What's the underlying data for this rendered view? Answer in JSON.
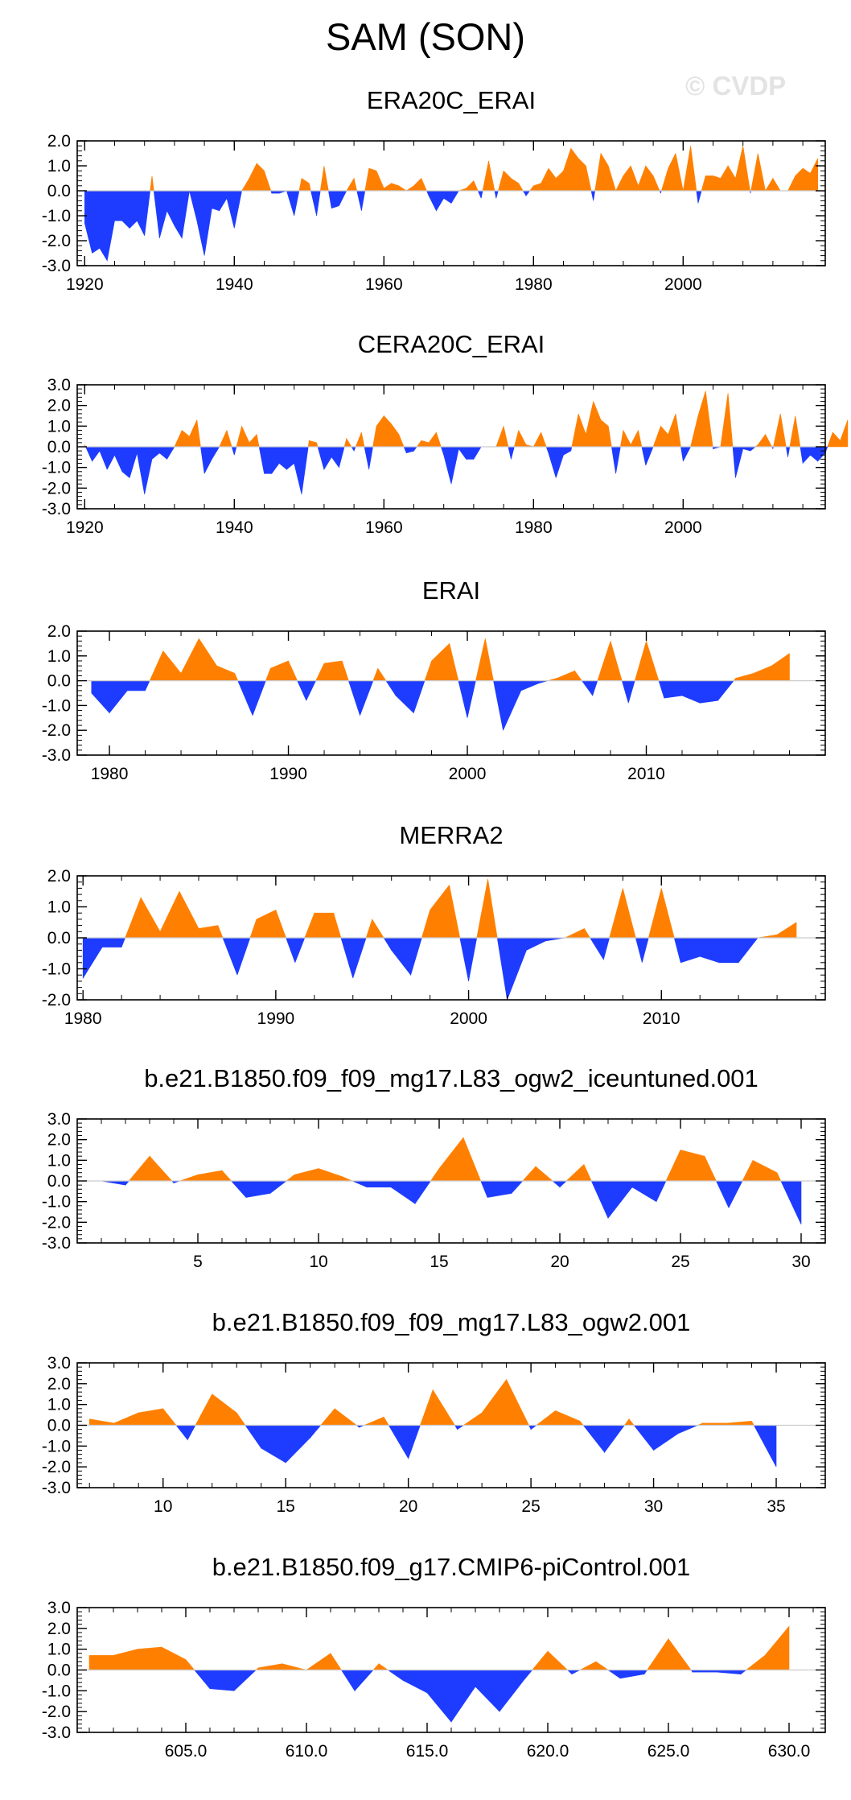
{
  "main_title": "SAM (SON)",
  "watermark": "© CVDP",
  "colors": {
    "positive": "#ff8000",
    "negative": "#1e3cff",
    "axis": "#000000"
  },
  "chart_data": [
    {
      "type": "area",
      "title": "ERA20C_ERAI",
      "xlim": [
        1919,
        2019
      ],
      "ylim": [
        -3,
        2
      ],
      "xticks": [
        1920,
        1940,
        1960,
        1980,
        2000
      ],
      "xtick_labels": [
        "1920",
        "1940",
        "1960",
        "1980",
        "2000"
      ],
      "yticks": [
        2,
        1,
        0,
        -1,
        -2,
        -3
      ],
      "ytick_labels": [
        "2.0",
        "1.0",
        "0.0",
        "-1.0",
        "-2.0",
        "-3.0"
      ],
      "x_start": 1920,
      "values": [
        -1.3,
        -2.5,
        -2.3,
        -2.8,
        -1.2,
        -1.2,
        -1.5,
        -1.2,
        -1.8,
        0.6,
        -1.9,
        -0.8,
        -1.4,
        -1.9,
        0.0,
        -1.2,
        -2.6,
        -0.7,
        -0.8,
        -0.3,
        -1.5,
        0.0,
        0.5,
        1.1,
        0.8,
        -0.1,
        -0.1,
        0.0,
        -1.0,
        0.5,
        0.3,
        -1.0,
        1.0,
        -0.7,
        -0.6,
        0.0,
        0.5,
        -0.8,
        0.9,
        0.8,
        0.1,
        0.3,
        0.2,
        0.0,
        0.2,
        0.5,
        -0.2,
        -0.8,
        -0.3,
        -0.5,
        0.0,
        0.1,
        0.4,
        -0.3,
        1.2,
        -0.3,
        0.8,
        0.5,
        0.3,
        -0.2,
        0.2,
        0.3,
        0.9,
        0.5,
        0.8,
        1.7,
        1.3,
        1.0,
        -0.4,
        1.5,
        1.0,
        0.0,
        0.6,
        1.0,
        0.2,
        1.0,
        0.6,
        -0.1,
        0.9,
        1.5,
        0.0,
        1.8,
        -0.5,
        0.6,
        0.6,
        0.5,
        1.0,
        0.5,
        1.8,
        -0.1,
        1.5,
        0.0,
        0.5,
        0.0,
        0.0,
        0.6,
        0.9,
        0.7,
        1.3
      ]
    },
    {
      "type": "area",
      "title": "CERA20C_ERAI",
      "xlim": [
        1919,
        2019
      ],
      "ylim": [
        -3,
        3
      ],
      "xticks": [
        1920,
        1940,
        1960,
        1980,
        2000
      ],
      "xtick_labels": [
        "1920",
        "1940",
        "1960",
        "1980",
        "2000"
      ],
      "yticks": [
        3,
        2,
        1,
        0,
        -1,
        -2,
        -3
      ],
      "ytick_labels": [
        "3.0",
        "2.0",
        "1.0",
        "0.0",
        "-1.0",
        "-2.0",
        "-3.0"
      ],
      "x_start": 1920,
      "values": [
        0.1,
        -0.7,
        -0.2,
        -1.1,
        -0.4,
        -1.2,
        -1.5,
        -0.3,
        -2.3,
        -0.6,
        -0.3,
        -0.6,
        0.0,
        0.8,
        0.5,
        1.3,
        -1.3,
        -0.6,
        0.0,
        0.8,
        -0.4,
        1.0,
        0.2,
        0.6,
        -1.3,
        -1.3,
        -0.8,
        -1.1,
        -0.8,
        -2.3,
        0.3,
        0.2,
        -1.1,
        -0.5,
        -1.0,
        0.4,
        -0.2,
        0.7,
        -1.1,
        1.0,
        1.5,
        1.1,
        0.6,
        -0.3,
        -0.2,
        0.3,
        0.2,
        0.7,
        -0.4,
        -1.8,
        -0.1,
        -0.6,
        -0.6,
        0.0,
        0.0,
        0.0,
        1.0,
        -0.6,
        0.8,
        0.1,
        0.0,
        0.7,
        -0.3,
        -1.5,
        -0.4,
        -0.2,
        1.6,
        0.6,
        2.2,
        1.3,
        1.0,
        -1.3,
        0.8,
        0.1,
        0.8,
        -0.9,
        0.0,
        1.0,
        0.6,
        1.6,
        -0.7,
        0.0,
        1.5,
        2.7,
        -0.1,
        0.0,
        2.6,
        -1.5,
        -0.1,
        -0.2,
        0.1,
        0.6,
        -0.1,
        1.6,
        -0.5,
        1.5,
        -0.8,
        -0.4,
        -0.7,
        -0.3,
        0.7,
        0.3,
        1.3
      ]
    },
    {
      "type": "area",
      "title": "ERAI",
      "xlim": [
        1978.2,
        2020
      ],
      "ylim": [
        -3,
        2
      ],
      "xticks": [
        1980,
        1990,
        2000,
        2010
      ],
      "xtick_labels": [
        "1980",
        "1990",
        "2000",
        "2010"
      ],
      "yticks": [
        2,
        1,
        0,
        -1,
        -2,
        -3
      ],
      "ytick_labels": [
        "2.0",
        "1.0",
        "0.0",
        "-1.0",
        "-2.0",
        "-3.0"
      ],
      "x_start": 1979,
      "values": [
        -0.5,
        -1.3,
        -0.4,
        -0.4,
        1.2,
        0.3,
        1.7,
        0.6,
        0.3,
        -1.4,
        0.5,
        0.8,
        -0.8,
        0.7,
        0.8,
        -1.4,
        0.5,
        -0.6,
        -1.3,
        0.8,
        1.5,
        -1.5,
        1.7,
        -2.0,
        -0.4,
        -0.1,
        0.1,
        0.4,
        -0.6,
        1.6,
        -0.9,
        1.6,
        -0.7,
        -0.6,
        -0.9,
        -0.8,
        0.1,
        0.3,
        0.6,
        1.1
      ]
    },
    {
      "type": "area",
      "title": "MERRA2",
      "xlim": [
        1979.7,
        2018.5
      ],
      "ylim": [
        -2,
        2
      ],
      "xticks": [
        1980,
        1990,
        2000,
        2010
      ],
      "xtick_labels": [
        "1980",
        "1990",
        "2000",
        "2010"
      ],
      "yticks": [
        2,
        1,
        0,
        -1,
        -2
      ],
      "ytick_labels": [
        "2.0",
        "1.0",
        "0.0",
        "-1.0",
        "-2.0"
      ],
      "x_start": 1980,
      "values": [
        -1.3,
        -0.3,
        -0.3,
        1.3,
        0.2,
        1.5,
        0.3,
        0.4,
        -1.2,
        0.6,
        0.9,
        -0.8,
        0.8,
        0.8,
        -1.3,
        0.6,
        -0.4,
        -1.2,
        0.9,
        1.7,
        -1.4,
        1.9,
        -2.0,
        -0.4,
        -0.1,
        0.0,
        0.3,
        -0.7,
        1.6,
        -0.8,
        1.6,
        -0.8,
        -0.6,
        -0.8,
        -0.8,
        0.0,
        0.1,
        0.5
      ]
    },
    {
      "type": "area",
      "title": "b.e21.B1850.f09_f09_mg17.L83_ogw2_iceuntuned.001",
      "xlim": [
        0,
        31
      ],
      "ylim": [
        -3,
        3
      ],
      "xticks": [
        5,
        10,
        15,
        20,
        25,
        30
      ],
      "xtick_labels": [
        "5",
        "10",
        "15",
        "20",
        "25",
        "30"
      ],
      "yticks": [
        3,
        2,
        1,
        0,
        -1,
        -2,
        -3
      ],
      "ytick_labels": [
        "3.0",
        "2.0",
        "1.0",
        "0.0",
        "-1.0",
        "-2.0",
        "-3.0"
      ],
      "x_start": 1,
      "values": [
        0.0,
        -0.2,
        1.2,
        -0.1,
        0.3,
        0.5,
        -0.8,
        -0.6,
        0.3,
        0.6,
        0.2,
        -0.3,
        -0.3,
        -1.1,
        0.6,
        2.1,
        -0.8,
        -0.6,
        0.7,
        -0.3,
        0.8,
        -1.8,
        -0.3,
        -1.0,
        1.5,
        1.2,
        -1.3,
        1.0,
        0.4,
        -2.1
      ]
    },
    {
      "type": "area",
      "title": "b.e21.B1850.f09_f09_mg17.L83_ogw2.001",
      "xlim": [
        6.5,
        37
      ],
      "ylim": [
        -3,
        3
      ],
      "xticks": [
        10,
        15,
        20,
        25,
        30,
        35
      ],
      "xtick_labels": [
        "10",
        "15",
        "20",
        "25",
        "30",
        "35"
      ],
      "yticks": [
        3,
        2,
        1,
        0,
        -1,
        -2,
        -3
      ],
      "ytick_labels": [
        "3.0",
        "2.0",
        "1.0",
        "0.0",
        "-1.0",
        "-2.0",
        "-3.0"
      ],
      "x_start": 7,
      "values": [
        0.3,
        0.1,
        0.6,
        0.8,
        -0.7,
        1.5,
        0.6,
        -1.1,
        -1.8,
        -0.6,
        0.8,
        -0.1,
        0.4,
        -1.6,
        1.7,
        -0.2,
        0.6,
        2.2,
        -0.2,
        0.7,
        0.2,
        -1.3,
        0.3,
        -1.2,
        -0.4,
        0.1,
        0.1,
        0.2,
        -2.0
      ]
    },
    {
      "type": "area",
      "title": "b.e21.B1850.f09_g17.CMIP6-piControl.001",
      "xlim": [
        600.5,
        631.5
      ],
      "ylim": [
        -3,
        3
      ],
      "xticks": [
        605,
        610,
        615,
        620,
        625,
        630
      ],
      "xtick_labels": [
        "605.0",
        "610.0",
        "615.0",
        "620.0",
        "625.0",
        "630.0"
      ],
      "yticks": [
        3,
        2,
        1,
        0,
        -1,
        -2,
        -3
      ],
      "ytick_labels": [
        "3.0",
        "2.0",
        "1.0",
        "0.0",
        "-1.0",
        "-2.0",
        "-3.0"
      ],
      "x_start": 601,
      "values": [
        0.7,
        0.7,
        1.0,
        1.1,
        0.5,
        -0.9,
        -1.0,
        0.1,
        0.3,
        0.0,
        0.8,
        -1.0,
        0.3,
        -0.5,
        -1.1,
        -2.5,
        -0.8,
        -2.0,
        -0.5,
        0.9,
        -0.2,
        0.4,
        -0.4,
        -0.2,
        1.5,
        -0.1,
        -0.1,
        -0.2,
        0.7,
        2.1
      ]
    }
  ]
}
